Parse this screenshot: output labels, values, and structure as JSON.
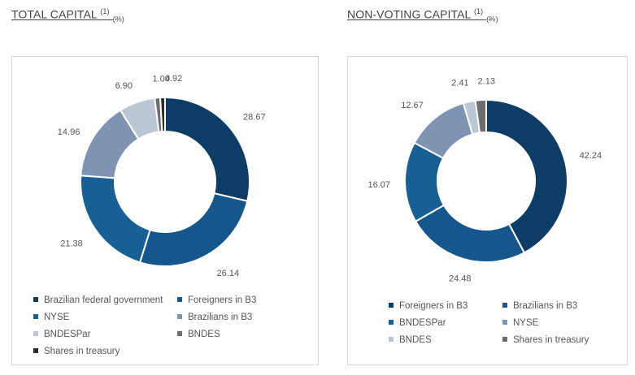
{
  "total_title": {
    "text": "TOTAL CAPITAL",
    "sup": "(1)",
    "sub": "(%)"
  },
  "nonvoting_title": {
    "text": "NON-VOTING CAPITAL",
    "sup": "(1)",
    "sub": "(%)"
  },
  "chart_data": [
    {
      "type": "pie",
      "title": "TOTAL CAPITAL (1) (%)",
      "style": "donut",
      "categories": [
        "Brazilian federal government",
        "Foreigners in B3",
        "NYSE",
        "Brazilians in B3",
        "BNDESPar",
        "BNDES",
        "Shares in treasury"
      ],
      "values": [
        28.67,
        26.14,
        21.38,
        14.96,
        6.9,
        1.04,
        0.92
      ],
      "value_labels": [
        "28.67",
        "26.14",
        "21.38",
        "14.96",
        "6.90",
        "1.04",
        "0.92"
      ],
      "colors": [
        "#0d3d66",
        "#15578c",
        "#175f95",
        "#7f93b3",
        "#bcc7d6",
        "#6d6d6d",
        "#2d2d2d"
      ],
      "legend": [
        {
          "label": "Brazilian federal government",
          "color": "#0d3d66"
        },
        {
          "label": "Foreigners in B3",
          "color": "#15578c"
        },
        {
          "label": "NYSE",
          "color": "#175f95"
        },
        {
          "label": "Brazilians in B3",
          "color": "#7f93b3"
        },
        {
          "label": "BNDESPar",
          "color": "#bcc7d6"
        },
        {
          "label": "BNDES",
          "color": "#6d6d6d"
        },
        {
          "label": "Shares in treasury",
          "color": "#2d2d2d"
        }
      ],
      "legend_position": "bottom"
    },
    {
      "type": "pie",
      "title": "NON-VOTING CAPITAL (1) (%)",
      "style": "donut",
      "categories": [
        "Foreigners in B3",
        "Brazilians in B3",
        "BNDESPar",
        "NYSE",
        "BNDES",
        "Shares in treasury"
      ],
      "values": [
        42.24,
        24.48,
        16.07,
        12.67,
        2.41,
        2.13
      ],
      "value_labels": [
        "42.24",
        "24.48",
        "16.07",
        "12.67",
        "2.41",
        "2.13"
      ],
      "colors": [
        "#0d3d66",
        "#15578c",
        "#175f95",
        "#7f93b3",
        "#bcc7d6",
        "#6d6d6d"
      ],
      "legend": [
        {
          "label": "Foreigners in B3",
          "color": "#0d3d66"
        },
        {
          "label": "Brazilians in B3",
          "color": "#15578c"
        },
        {
          "label": "BNDESPar",
          "color": "#175f95"
        },
        {
          "label": "NYSE",
          "color": "#7f93b3"
        },
        {
          "label": "BNDES",
          "color": "#bcc7d6"
        },
        {
          "label": "Shares in treasury",
          "color": "#6d6d6d"
        }
      ],
      "legend_position": "bottom"
    }
  ]
}
